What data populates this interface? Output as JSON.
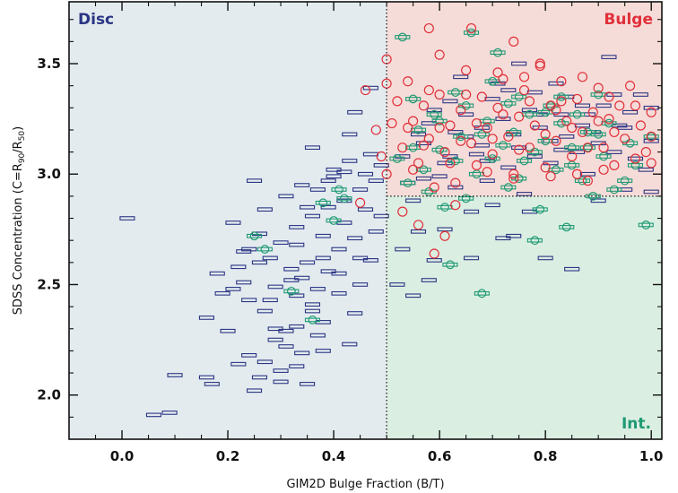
{
  "chart_data": {
    "type": "scatter",
    "title": "",
    "xlabel": "GIM2D Bulge Fraction (B/T)",
    "ylabel": {
      "main": "SDSS Concentration (C=R",
      "sub1": "90",
      "mid": "/R",
      "sub2": "50",
      "end": ")"
    },
    "xlim": [
      -0.1,
      1.02
    ],
    "ylim": [
      1.8,
      3.78
    ],
    "xticks": [
      0.0,
      0.2,
      0.4,
      0.6,
      0.8,
      1.0
    ],
    "xtick_labels": [
      "0.0",
      "0.2",
      "0.4",
      "0.6",
      "0.8",
      "1.0"
    ],
    "yticks": [
      2.0,
      2.5,
      3.0,
      3.5
    ],
    "ytick_labels": [
      "2.0",
      "2.5",
      "3.0",
      "3.5"
    ],
    "grid": false,
    "legend": "none",
    "regions": [
      {
        "label": "Disc",
        "label_color": "#2b3585",
        "fill": "#e3ebee",
        "x_range": [
          -0.1,
          0.5
        ],
        "y_range": [
          1.8,
          3.78
        ]
      },
      {
        "label": "Bulge",
        "label_color": "#e0303a",
        "fill": "#f6dcd8",
        "x_range": [
          0.5,
          1.02
        ],
        "y_range": [
          2.9,
          3.78
        ]
      },
      {
        "label": "Int.",
        "label_color": "#1f9a74",
        "fill": "#dbeee2",
        "x_range": [
          0.5,
          1.02
        ],
        "y_range": [
          1.8,
          2.9
        ]
      }
    ],
    "boundaries": {
      "x": 0.5,
      "y": 2.9
    },
    "series_style": {
      "disc": {
        "marker": "horizontal-bar",
        "color": "#2b3585"
      },
      "bulge": {
        "marker": "open-circle",
        "color": "#e0303a"
      },
      "intermediate": {
        "marker": "circle-with-bar",
        "color": "#1f9a74"
      }
    },
    "disc_points": [
      [
        0.01,
        2.8
      ],
      [
        0.06,
        1.91
      ],
      [
        0.09,
        1.92
      ],
      [
        0.1,
        2.09
      ],
      [
        0.16,
        2.08
      ],
      [
        0.17,
        2.05
      ],
      [
        0.16,
        2.35
      ],
      [
        0.18,
        2.55
      ],
      [
        0.19,
        2.46
      ],
      [
        0.2,
        2.29
      ],
      [
        0.21,
        2.48
      ],
      [
        0.22,
        2.58
      ],
      [
        0.23,
        2.65
      ],
      [
        0.24,
        2.43
      ],
      [
        0.22,
        2.14
      ],
      [
        0.25,
        2.02
      ],
      [
        0.26,
        2.08
      ],
      [
        0.24,
        2.18
      ],
      [
        0.27,
        2.15
      ],
      [
        0.25,
        2.97
      ],
      [
        0.27,
        2.84
      ],
      [
        0.26,
        2.6
      ],
      [
        0.27,
        2.38
      ],
      [
        0.28,
        2.43
      ],
      [
        0.29,
        2.25
      ],
      [
        0.3,
        2.11
      ],
      [
        0.3,
        2.06
      ],
      [
        0.31,
        2.22
      ],
      [
        0.31,
        2.29
      ],
      [
        0.32,
        2.52
      ],
      [
        0.3,
        2.69
      ],
      [
        0.31,
        2.9
      ],
      [
        0.33,
        2.76
      ],
      [
        0.33,
        2.45
      ],
      [
        0.33,
        2.31
      ],
      [
        0.34,
        2.19
      ],
      [
        0.35,
        2.05
      ],
      [
        0.35,
        2.6
      ],
      [
        0.36,
        2.81
      ],
      [
        0.34,
        2.95
      ],
      [
        0.36,
        3.12
      ],
      [
        0.36,
        2.38
      ],
      [
        0.37,
        2.27
      ],
      [
        0.38,
        2.33
      ],
      [
        0.37,
        2.48
      ],
      [
        0.38,
        2.62
      ],
      [
        0.38,
        2.72
      ],
      [
        0.39,
        2.85
      ],
      [
        0.39,
        2.97
      ],
      [
        0.4,
        3.02
      ],
      [
        0.41,
        2.66
      ],
      [
        0.41,
        2.55
      ],
      [
        0.42,
        2.78
      ],
      [
        0.42,
        2.88
      ],
      [
        0.43,
        3.06
      ],
      [
        0.43,
        3.18
      ],
      [
        0.44,
        3.28
      ],
      [
        0.44,
        2.71
      ],
      [
        0.45,
        2.93
      ],
      [
        0.45,
        2.62
      ],
      [
        0.46,
        3.0
      ],
      [
        0.46,
        2.84
      ],
      [
        0.47,
        3.09
      ],
      [
        0.47,
        3.39
      ],
      [
        0.48,
        2.74
      ],
      [
        0.48,
        2.97
      ],
      [
        0.49,
        3.04
      ],
      [
        0.49,
        2.81
      ],
      [
        0.32,
        2.57
      ],
      [
        0.33,
        2.68
      ],
      [
        0.35,
        2.85
      ],
      [
        0.37,
        2.93
      ],
      [
        0.4,
        2.99
      ],
      [
        0.42,
        3.01
      ],
      [
        0.29,
        2.49
      ],
      [
        0.28,
        2.62
      ],
      [
        0.26,
        2.73
      ],
      [
        0.24,
        2.66
      ],
      [
        0.21,
        2.78
      ],
      [
        0.23,
        2.51
      ],
      [
        0.34,
        2.53
      ],
      [
        0.36,
        2.41
      ],
      [
        0.39,
        2.56
      ],
      [
        0.41,
        2.46
      ],
      [
        0.45,
        2.5
      ],
      [
        0.47,
        2.61
      ],
      [
        0.44,
        2.37
      ],
      [
        0.38,
        2.2
      ],
      [
        0.33,
        2.13
      ],
      [
        0.29,
        2.3
      ],
      [
        0.43,
        2.23
      ],
      [
        0.52,
        2.5
      ],
      [
        0.55,
        2.45
      ],
      [
        0.53,
        2.66
      ],
      [
        0.56,
        2.74
      ],
      [
        0.55,
        2.88
      ],
      [
        0.54,
        2.96
      ],
      [
        0.53,
        3.08
      ],
      [
        0.57,
        3.14
      ],
      [
        0.58,
        3.23
      ],
      [
        0.59,
        2.61
      ],
      [
        0.6,
        2.99
      ],
      [
        0.61,
        3.05
      ],
      [
        0.62,
        3.33
      ],
      [
        0.63,
        2.94
      ],
      [
        0.64,
        3.44
      ],
      [
        0.65,
        3.17
      ],
      [
        0.66,
        2.83
      ],
      [
        0.67,
        3.09
      ],
      [
        0.68,
        3.21
      ],
      [
        0.69,
        2.97
      ],
      [
        0.7,
        3.34
      ],
      [
        0.71,
        3.41
      ],
      [
        0.72,
        2.71
      ],
      [
        0.73,
        3.03
      ],
      [
        0.74,
        3.18
      ],
      [
        0.75,
        3.5
      ],
      [
        0.76,
        2.91
      ],
      [
        0.77,
        3.29
      ],
      [
        0.78,
        3.08
      ],
      [
        0.79,
        3.21
      ],
      [
        0.8,
        2.62
      ],
      [
        0.81,
        3.15
      ],
      [
        0.82,
        3.41
      ],
      [
        0.83,
        3.27
      ],
      [
        0.84,
        3.35
      ],
      [
        0.85,
        2.57
      ],
      [
        0.86,
        3.1
      ],
      [
        0.87,
        3.22
      ],
      [
        0.88,
        3.0
      ],
      [
        0.89,
        3.19
      ],
      [
        0.9,
        2.88
      ],
      [
        0.91,
        3.31
      ],
      [
        0.92,
        3.53
      ],
      [
        0.93,
        3.1
      ],
      [
        0.94,
        3.22
      ],
      [
        0.95,
        2.93
      ],
      [
        0.96,
        3.28
      ],
      [
        0.97,
        3.07
      ],
      [
        0.98,
        3.36
      ],
      [
        1.0,
        2.92
      ],
      [
        1.0,
        3.15
      ],
      [
        1.0,
        3.3
      ],
      [
        0.99,
        3.02
      ],
      [
        0.56,
        3.18
      ],
      [
        0.59,
        3.29
      ],
      [
        0.62,
        3.08
      ],
      [
        0.65,
        3.27
      ],
      [
        0.68,
        3.13
      ],
      [
        0.72,
        3.25
      ],
      [
        0.75,
        3.12
      ],
      [
        0.78,
        3.37
      ],
      [
        0.81,
        3.05
      ],
      [
        0.84,
        3.17
      ],
      [
        0.87,
        3.31
      ],
      [
        0.9,
        3.14
      ],
      [
        0.93,
        3.36
      ],
      [
        0.58,
        2.52
      ],
      [
        0.61,
        2.75
      ],
      [
        0.66,
        2.62
      ],
      [
        0.7,
        2.86
      ],
      [
        0.74,
        2.72
      ],
      [
        0.77,
        2.83
      ],
      [
        0.57,
        2.98
      ],
      [
        0.63,
        3.19
      ],
      [
        0.69,
        3.06
      ],
      [
        0.73,
        3.38
      ],
      [
        0.79,
        3.27
      ],
      [
        0.83,
        3.11
      ],
      [
        0.88,
        3.27
      ],
      [
        0.95,
        3.21
      ]
    ],
    "bulge_points": [
      [
        0.5,
        3.52
      ],
      [
        0.5,
        3.41
      ],
      [
        0.46,
        3.38
      ],
      [
        0.48,
        3.2
      ],
      [
        0.49,
        3.08
      ],
      [
        0.5,
        3.0
      ],
      [
        0.45,
        2.87
      ],
      [
        0.51,
        3.23
      ],
      [
        0.52,
        3.33
      ],
      [
        0.53,
        3.12
      ],
      [
        0.54,
        3.42
      ],
      [
        0.55,
        3.24
      ],
      [
        0.56,
        3.05
      ],
      [
        0.57,
        3.31
      ],
      [
        0.58,
        3.16
      ],
      [
        0.59,
        2.94
      ],
      [
        0.6,
        3.36
      ],
      [
        0.61,
        3.1
      ],
      [
        0.62,
        3.22
      ],
      [
        0.63,
        2.96
      ],
      [
        0.64,
        3.29
      ],
      [
        0.65,
        3.47
      ],
      [
        0.66,
        3.14
      ],
      [
        0.67,
        3.04
      ],
      [
        0.68,
        3.35
      ],
      [
        0.69,
        3.21
      ],
      [
        0.7,
        3.09
      ],
      [
        0.71,
        3.3
      ],
      [
        0.72,
        3.43
      ],
      [
        0.73,
        3.17
      ],
      [
        0.74,
        3.0
      ],
      [
        0.75,
        3.26
      ],
      [
        0.76,
        3.38
      ],
      [
        0.77,
        3.12
      ],
      [
        0.78,
        3.22
      ],
      [
        0.79,
        3.49
      ],
      [
        0.8,
        3.03
      ],
      [
        0.81,
        3.31
      ],
      [
        0.82,
        3.15
      ],
      [
        0.83,
        3.42
      ],
      [
        0.84,
        3.24
      ],
      [
        0.85,
        3.08
      ],
      [
        0.86,
        3.34
      ],
      [
        0.87,
        3.19
      ],
      [
        0.88,
        2.97
      ],
      [
        0.89,
        3.28
      ],
      [
        0.9,
        3.39
      ],
      [
        0.91,
        3.12
      ],
      [
        0.92,
        3.25
      ],
      [
        0.93,
        3.04
      ],
      [
        0.94,
        3.31
      ],
      [
        0.95,
        3.16
      ],
      [
        0.96,
        3.4
      ],
      [
        0.97,
        3.07
      ],
      [
        0.98,
        3.22
      ],
      [
        0.99,
        3.1
      ],
      [
        1.0,
        3.28
      ],
      [
        1.0,
        3.05
      ],
      [
        1.0,
        3.17
      ],
      [
        0.58,
        3.66
      ],
      [
        0.6,
        3.54
      ],
      [
        0.66,
        3.66
      ],
      [
        0.74,
        3.6
      ],
      [
        0.79,
        3.5
      ],
      [
        0.55,
        3.02
      ],
      [
        0.57,
        3.13
      ],
      [
        0.6,
        3.21
      ],
      [
        0.62,
        3.05
      ],
      [
        0.64,
        3.15
      ],
      [
        0.67,
        3.23
      ],
      [
        0.7,
        3.16
      ],
      [
        0.72,
        3.27
      ],
      [
        0.75,
        3.11
      ],
      [
        0.77,
        3.33
      ],
      [
        0.8,
        3.18
      ],
      [
        0.82,
        3.29
      ],
      [
        0.85,
        3.21
      ],
      [
        0.88,
        3.12
      ],
      [
        0.9,
        3.24
      ],
      [
        0.93,
        3.19
      ],
      [
        0.53,
        2.83
      ],
      [
        0.56,
        2.77
      ],
      [
        0.61,
        2.72
      ],
      [
        0.59,
        2.64
      ],
      [
        0.63,
        2.86
      ],
      [
        0.54,
        3.21
      ],
      [
        0.58,
        3.38
      ],
      [
        0.65,
        3.36
      ],
      [
        0.71,
        3.46
      ],
      [
        0.76,
        3.44
      ],
      [
        0.83,
        3.33
      ],
      [
        0.87,
        3.44
      ],
      [
        0.92,
        3.35
      ],
      [
        0.97,
        3.31
      ],
      [
        0.69,
        3.01
      ],
      [
        0.74,
        2.98
      ],
      [
        0.81,
        2.99
      ],
      [
        0.86,
        3.0
      ],
      [
        0.91,
        3.02
      ]
    ],
    "int_points": [
      [
        0.41,
        2.93
      ],
      [
        0.42,
        2.89
      ],
      [
        0.36,
        2.34
      ],
      [
        0.32,
        2.47
      ],
      [
        0.25,
        2.72
      ],
      [
        0.27,
        2.66
      ],
      [
        0.4,
        2.79
      ],
      [
        0.38,
        2.87
      ],
      [
        0.52,
        3.07
      ],
      [
        0.53,
        3.62
      ],
      [
        0.55,
        3.34
      ],
      [
        0.56,
        3.2
      ],
      [
        0.57,
        3.02
      ],
      [
        0.58,
        2.92
      ],
      [
        0.59,
        3.27
      ],
      [
        0.6,
        3.11
      ],
      [
        0.61,
        2.85
      ],
      [
        0.62,
        2.59
      ],
      [
        0.63,
        3.06
      ],
      [
        0.64,
        3.17
      ],
      [
        0.65,
        3.31
      ],
      [
        0.66,
        3.64
      ],
      [
        0.67,
        3.0
      ],
      [
        0.68,
        2.46
      ],
      [
        0.69,
        3.24
      ],
      [
        0.7,
        3.42
      ],
      [
        0.71,
        3.55
      ],
      [
        0.72,
        3.13
      ],
      [
        0.73,
        2.94
      ],
      [
        0.74,
        3.19
      ],
      [
        0.75,
        3.35
      ],
      [
        0.76,
        3.06
      ],
      [
        0.77,
        3.27
      ],
      [
        0.78,
        2.7
      ],
      [
        0.79,
        2.84
      ],
      [
        0.8,
        3.15
      ],
      [
        0.81,
        3.31
      ],
      [
        0.82,
        3.02
      ],
      [
        0.83,
        3.23
      ],
      [
        0.84,
        2.76
      ],
      [
        0.85,
        3.12
      ],
      [
        0.86,
        3.27
      ],
      [
        0.87,
        2.97
      ],
      [
        0.88,
        3.19
      ],
      [
        0.89,
        2.9
      ],
      [
        0.9,
        3.36
      ],
      [
        0.91,
        3.08
      ],
      [
        0.92,
        3.23
      ],
      [
        0.93,
        2.93
      ],
      [
        0.95,
        2.97
      ],
      [
        0.96,
        3.14
      ],
      [
        0.97,
        3.04
      ],
      [
        0.99,
        2.77
      ],
      [
        1.0,
        3.17
      ],
      [
        0.54,
        2.96
      ],
      [
        0.6,
        3.24
      ],
      [
        0.65,
        2.89
      ],
      [
        0.7,
        3.07
      ],
      [
        0.75,
        2.98
      ],
      [
        0.8,
        3.28
      ],
      [
        0.85,
        3.04
      ],
      [
        0.9,
        3.18
      ],
      [
        0.55,
        3.12
      ],
      [
        0.63,
        3.37
      ],
      [
        0.68,
        3.18
      ],
      [
        0.73,
        3.32
      ],
      [
        0.78,
        3.1
      ],
      [
        0.83,
        3.35
      ],
      [
        0.88,
        3.12
      ]
    ]
  }
}
